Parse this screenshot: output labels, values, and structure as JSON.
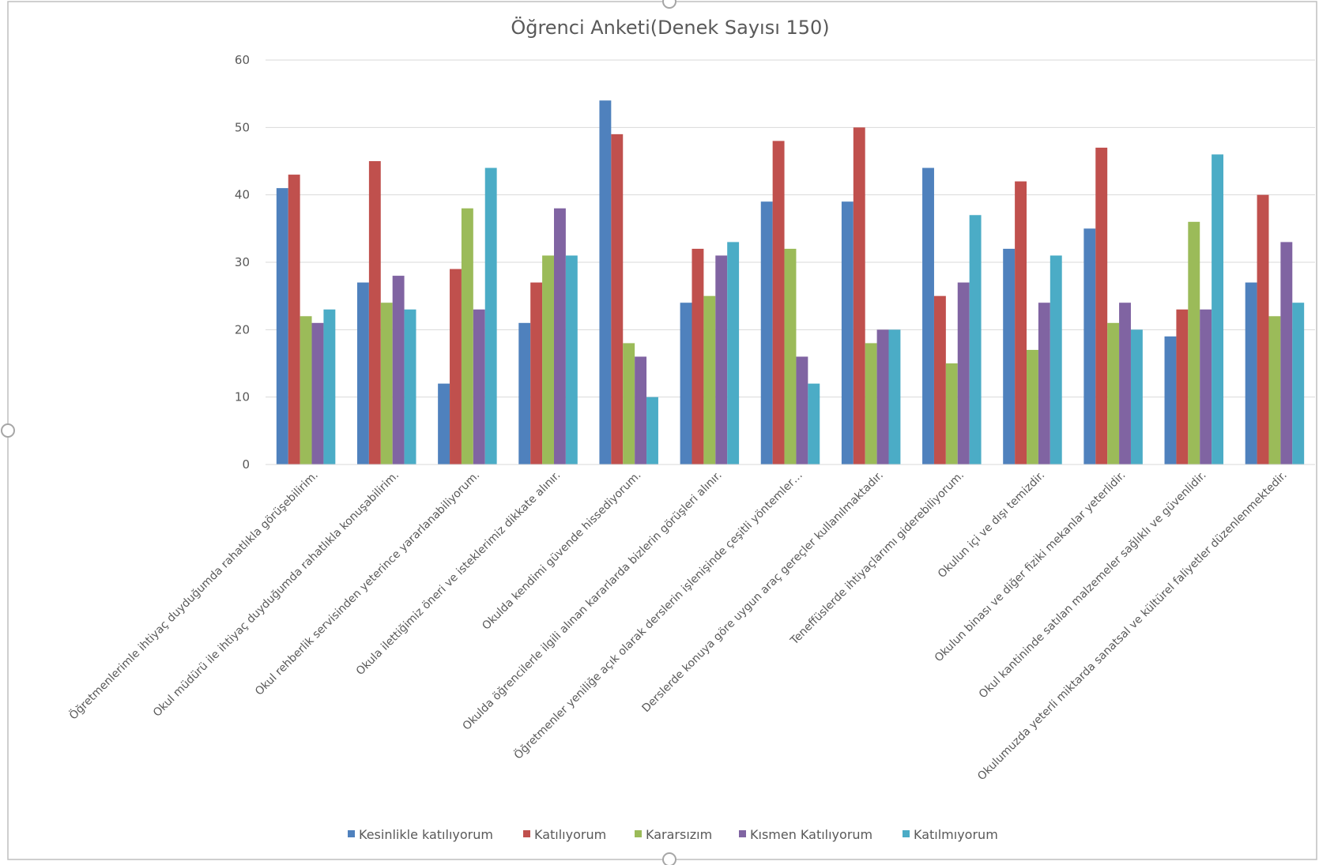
{
  "chart_data": {
    "type": "bar",
    "title": "Öğrenci Anketi(Denek Sayısı 150)",
    "xlabel": "",
    "ylabel": "",
    "ylim": [
      0,
      60
    ],
    "yticks": [
      0,
      10,
      20,
      30,
      40,
      50,
      60
    ],
    "grid": true,
    "legend_position": "bottom",
    "categories": [
      "Öğretmenlerimle ihtiyaç duyduğumda rahatlıkla görüşebilirim.",
      "Okul müdürü ile ihtiyaç duyduğumda rahatlıkla konuşabilirim.",
      "Okul rehberlik servisinden yeterince yararlanabiliyorum.",
      "Okula ilettiğimiz öneri ve isteklerimiz dikkate alınır.",
      "Okulda kendimi güvende hissediyorum.",
      "Okulda öğrencilerle ilgili alınan kararlarda bizlerin görüşleri alınır.",
      "Öğretmenler yeniliğe açık olarak derslerin işlenişinde çeşitli yöntemler…",
      "Derslerde konuya göre uygun araç gereçler kullanılmaktadır.",
      "Teneffüslerde ihtiyaçlarımı giderebiliyorum.",
      "Okulun içi ve dışı temizdir.",
      "Okulun binası ve diğer fiziki mekanlar yeterlidir.",
      "Okul kantininde satılan malzemeler sağlıklı ve güvenlidir.",
      "Okulumuzda yeterli miktarda sanatsal ve kültürel faliyetler düzenlenmektedir."
    ],
    "series": [
      {
        "name": "Kesinlikle katılıyorum",
        "color": "#4f81bd",
        "values": [
          41,
          27,
          12,
          21,
          54,
          24,
          39,
          39,
          44,
          32,
          35,
          19,
          27
        ]
      },
      {
        "name": "Katılıyorum",
        "color": "#c0504d",
        "values": [
          43,
          45,
          29,
          27,
          49,
          32,
          48,
          50,
          25,
          42,
          47,
          23,
          40
        ]
      },
      {
        "name": "Kararsızım",
        "color": "#9bbb59",
        "values": [
          22,
          24,
          38,
          31,
          18,
          25,
          32,
          18,
          15,
          17,
          21,
          36,
          22
        ]
      },
      {
        "name": "Kısmen Katılıyorum",
        "color": "#8064a2",
        "values": [
          21,
          28,
          23,
          38,
          16,
          31,
          16,
          20,
          27,
          24,
          24,
          23,
          33
        ]
      },
      {
        "name": "Katılmıyorum",
        "color": "#4bacc6",
        "values": [
          23,
          23,
          44,
          31,
          10,
          33,
          12,
          20,
          37,
          31,
          20,
          46,
          24
        ]
      }
    ]
  }
}
